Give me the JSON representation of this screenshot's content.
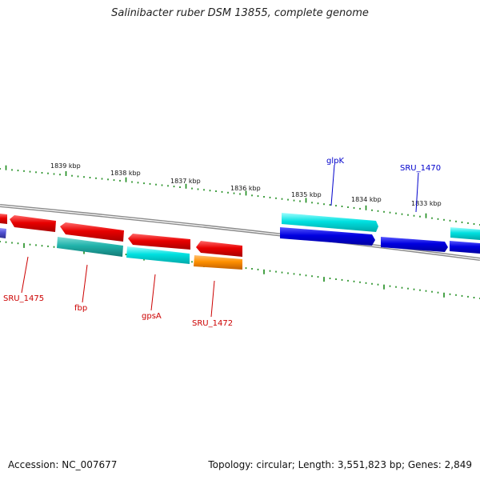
{
  "title": "Salinibacter ruber DSM 13855, complete genome",
  "footer": {
    "accession": "Accession: NC_007677",
    "topology": "Topology: circular; Length: 3,551,823 bp; Genes: 2,849"
  },
  "colors": {
    "backbone": "#8a8a8a",
    "tick": "#1a8a1a",
    "forward_label": "#0000cc",
    "reverse_label": "#cc0000",
    "red": "#e80000",
    "blue": "#0000e0",
    "cyan": "#00e0e0",
    "teal": "#20b2aa",
    "orange": "#ff9000",
    "purple": "#5050d0"
  },
  "ticks": [
    "1839 kbp",
    "1838 kbp",
    "1837 kbp",
    "1836 kbp",
    "1835 kbp",
    "1834 kbp",
    "1833 kbp"
  ],
  "genes": [
    {
      "label": "SRU_1475",
      "strand": "reverse",
      "color": "red"
    },
    {
      "label": "fbp",
      "strand": "reverse",
      "color": "red"
    },
    {
      "label": "gpsA",
      "strand": "reverse",
      "color": "red"
    },
    {
      "label": "SRU_1472",
      "strand": "reverse",
      "color": "red"
    },
    {
      "label": "glpK",
      "strand": "forward",
      "color": "cyan"
    },
    {
      "label": "SRU_1470",
      "strand": "forward",
      "color": "blue"
    }
  ]
}
